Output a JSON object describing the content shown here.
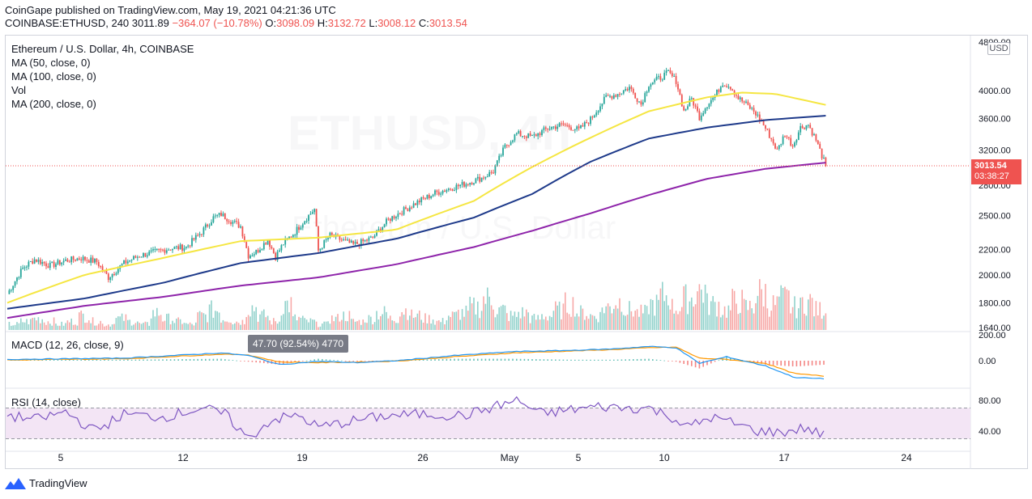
{
  "header": {
    "published": "CoinGape published on TradingView.com, May 19, 2021 04:21:36 UTC",
    "symbol": "COINBASE:ETHUSD, 240",
    "last": "3011.89",
    "change": "−364.07 (−10.78%)",
    "o_label": "O:",
    "o_value": "3098.09",
    "h_label": "H:",
    "h_value": "3132.72",
    "l_label": "L:",
    "l_value": "3008.12",
    "c_label": "C:",
    "c_value": "3013.54"
  },
  "legend": {
    "title": "Ethereum / U.S. Dollar, 4h, COINBASE",
    "ma50": "MA (50, close, 0)",
    "ma100": "MA (100, close, 0)",
    "vol": "Vol",
    "ma200": "MA (200, close, 0)",
    "macd": "MACD (12, 26, close, 9)",
    "rsi": "RSI (14, close)"
  },
  "watermark": {
    "symbol": "ETHUSD, 4h",
    "name": "Ethereum / U.S. Dollar"
  },
  "currency": "USD",
  "price_tag": {
    "price": "3013.54",
    "countdown": "03:38:27"
  },
  "macd_tooltip": "47.70 (92.54%) 4770",
  "footer": {
    "brand": "TradingView"
  },
  "colors": {
    "up": "#26a69a",
    "down": "#ef5350",
    "ma50": "#f5e642",
    "ma100": "#1e3a8a",
    "ma200": "#8e24aa",
    "macd": "#2196f3",
    "signal": "#ff9800",
    "rsi": "#7e57c2",
    "rsi_band": "#f3e5f5"
  },
  "chart_data": {
    "type": "candlestick",
    "x_ticks": [
      "5",
      "12",
      "19",
      "26",
      "May",
      "5",
      "10",
      "17",
      "24"
    ],
    "price_axis": {
      "ticks": [
        "4800.00",
        "4000.00",
        "3600.00",
        "3200.00",
        "2800.00",
        "2500.00",
        "2200.00",
        "2000.00",
        "1800.00",
        "1640.00"
      ],
      "tick_values": [
        4800,
        4000,
        3600,
        3200,
        2800,
        2500,
        2200,
        2000,
        1800,
        1640
      ],
      "range": [
        1640,
        4800
      ],
      "scale": "log"
    },
    "macd_axis": {
      "ticks": [
        "200.00",
        "0.00"
      ],
      "tick_values": [
        200,
        0
      ]
    },
    "rsi_axis": {
      "ticks": [
        "80.00",
        "40.00"
      ],
      "tick_values": [
        80,
        40
      ],
      "band": [
        30,
        70
      ]
    },
    "last_close": 3013.54,
    "price_path": [
      [
        0,
        1860
      ],
      [
        8,
        2050
      ],
      [
        14,
        2120
      ],
      [
        22,
        2070
      ],
      [
        30,
        2110
      ],
      [
        38,
        2130
      ],
      [
        46,
        2100
      ],
      [
        52,
        1980
      ],
      [
        60,
        2090
      ],
      [
        68,
        2150
      ],
      [
        76,
        2180
      ],
      [
        84,
        2210
      ],
      [
        92,
        2220
      ],
      [
        100,
        2350
      ],
      [
        106,
        2480
      ],
      [
        110,
        2510
      ],
      [
        116,
        2440
      ],
      [
        120,
        2400
      ],
      [
        124,
        2150
      ],
      [
        128,
        2180
      ],
      [
        134,
        2280
      ],
      [
        138,
        2140
      ],
      [
        142,
        2250
      ],
      [
        148,
        2350
      ],
      [
        154,
        2480
      ],
      [
        158,
        2560
      ],
      [
        160,
        2190
      ],
      [
        166,
        2320
      ],
      [
        172,
        2280
      ],
      [
        178,
        2240
      ],
      [
        182,
        2260
      ],
      [
        188,
        2300
      ],
      [
        196,
        2460
      ],
      [
        204,
        2550
      ],
      [
        212,
        2640
      ],
      [
        220,
        2720
      ],
      [
        228,
        2770
      ],
      [
        236,
        2820
      ],
      [
        244,
        2880
      ],
      [
        250,
        2950
      ],
      [
        256,
        3240
      ],
      [
        262,
        3400
      ],
      [
        270,
        3360
      ],
      [
        278,
        3470
      ],
      [
        286,
        3520
      ],
      [
        294,
        3450
      ],
      [
        300,
        3590
      ],
      [
        308,
        3900
      ],
      [
        314,
        3950
      ],
      [
        320,
        4050
      ],
      [
        326,
        3800
      ],
      [
        330,
        4100
      ],
      [
        336,
        4200
      ],
      [
        340,
        4280
      ],
      [
        344,
        4150
      ],
      [
        348,
        3700
      ],
      [
        352,
        3880
      ],
      [
        356,
        3620
      ],
      [
        360,
        3800
      ],
      [
        364,
        3920
      ],
      [
        368,
        4120
      ],
      [
        372,
        4060
      ],
      [
        376,
        3890
      ],
      [
        380,
        3800
      ],
      [
        384,
        3700
      ],
      [
        388,
        3560
      ],
      [
        392,
        3380
      ],
      [
        396,
        3190
      ],
      [
        400,
        3400
      ],
      [
        404,
        3250
      ],
      [
        408,
        3480
      ],
      [
        412,
        3520
      ],
      [
        416,
        3320
      ],
      [
        419,
        3130
      ],
      [
        421,
        3013.54
      ]
    ],
    "ma50_path": [
      [
        0,
        1800
      ],
      [
        40,
        2000
      ],
      [
        80,
        2130
      ],
      [
        120,
        2270
      ],
      [
        160,
        2300
      ],
      [
        200,
        2370
      ],
      [
        240,
        2640
      ],
      [
        270,
        3000
      ],
      [
        300,
        3350
      ],
      [
        330,
        3700
      ],
      [
        360,
        3900
      ],
      [
        378,
        3970
      ],
      [
        395,
        3950
      ],
      [
        421,
        3790
      ]
    ],
    "ma100_path": [
      [
        0,
        1760
      ],
      [
        40,
        1830
      ],
      [
        80,
        1940
      ],
      [
        120,
        2090
      ],
      [
        160,
        2170
      ],
      [
        200,
        2290
      ],
      [
        240,
        2480
      ],
      [
        270,
        2710
      ],
      [
        300,
        3060
      ],
      [
        330,
        3340
      ],
      [
        360,
        3480
      ],
      [
        390,
        3580
      ],
      [
        421,
        3640
      ]
    ],
    "ma200_path": [
      [
        0,
        1700
      ],
      [
        40,
        1780
      ],
      [
        80,
        1840
      ],
      [
        120,
        1920
      ],
      [
        160,
        1980
      ],
      [
        200,
        2080
      ],
      [
        240,
        2220
      ],
      [
        270,
        2360
      ],
      [
        300,
        2520
      ],
      [
        330,
        2700
      ],
      [
        360,
        2870
      ],
      [
        390,
        2980
      ],
      [
        421,
        3050
      ]
    ],
    "volume_profile": [
      2,
      3,
      4,
      3,
      2,
      3,
      5,
      3,
      2,
      4,
      3,
      2,
      6,
      4,
      3,
      2,
      5,
      7,
      4,
      3,
      8,
      5,
      3,
      9,
      4,
      3,
      2,
      4,
      5,
      3,
      4,
      6,
      4,
      7,
      5,
      4,
      3,
      5,
      6,
      8,
      11,
      7,
      5,
      6,
      4,
      5,
      7,
      9,
      6,
      5,
      8,
      10,
      7,
      6,
      9,
      12,
      8,
      11,
      14,
      9,
      7,
      10,
      8,
      13,
      9,
      11,
      8,
      10,
      7,
      9
    ],
    "macd_path": [
      [
        0,
        10
      ],
      [
        60,
        20
      ],
      [
        110,
        60
      ],
      [
        124,
        40
      ],
      [
        140,
        -30
      ],
      [
        160,
        -5
      ],
      [
        180,
        -15
      ],
      [
        200,
        0
      ],
      [
        230,
        40
      ],
      [
        260,
        70
      ],
      [
        290,
        80
      ],
      [
        310,
        90
      ],
      [
        330,
        110
      ],
      [
        344,
        100
      ],
      [
        356,
        -20
      ],
      [
        370,
        30
      ],
      [
        390,
        -40
      ],
      [
        405,
        -130
      ],
      [
        421,
        -140
      ]
    ],
    "signal_path": [
      [
        0,
        5
      ],
      [
        60,
        15
      ],
      [
        110,
        50
      ],
      [
        124,
        45
      ],
      [
        140,
        -10
      ],
      [
        160,
        -15
      ],
      [
        180,
        -10
      ],
      [
        200,
        -3
      ],
      [
        230,
        30
      ],
      [
        260,
        60
      ],
      [
        290,
        75
      ],
      [
        310,
        85
      ],
      [
        330,
        100
      ],
      [
        344,
        105
      ],
      [
        356,
        20
      ],
      [
        370,
        10
      ],
      [
        390,
        -20
      ],
      [
        405,
        -100
      ],
      [
        421,
        -120
      ]
    ],
    "rsi_path": [
      [
        0,
        60
      ],
      [
        15,
        55
      ],
      [
        30,
        65
      ],
      [
        45,
        40
      ],
      [
        60,
        62
      ],
      [
        80,
        58
      ],
      [
        100,
        70
      ],
      [
        112,
        62
      ],
      [
        124,
        30
      ],
      [
        136,
        55
      ],
      [
        150,
        60
      ],
      [
        160,
        45
      ],
      [
        175,
        52
      ],
      [
        195,
        60
      ],
      [
        215,
        62
      ],
      [
        235,
        60
      ],
      [
        255,
        75
      ],
      [
        262,
        80
      ],
      [
        275,
        62
      ],
      [
        290,
        68
      ],
      [
        305,
        72
      ],
      [
        318,
        70
      ],
      [
        330,
        70
      ],
      [
        342,
        58
      ],
      [
        350,
        45
      ],
      [
        362,
        58
      ],
      [
        374,
        50
      ],
      [
        386,
        40
      ],
      [
        398,
        38
      ],
      [
        410,
        44
      ],
      [
        421,
        34
      ]
    ]
  }
}
